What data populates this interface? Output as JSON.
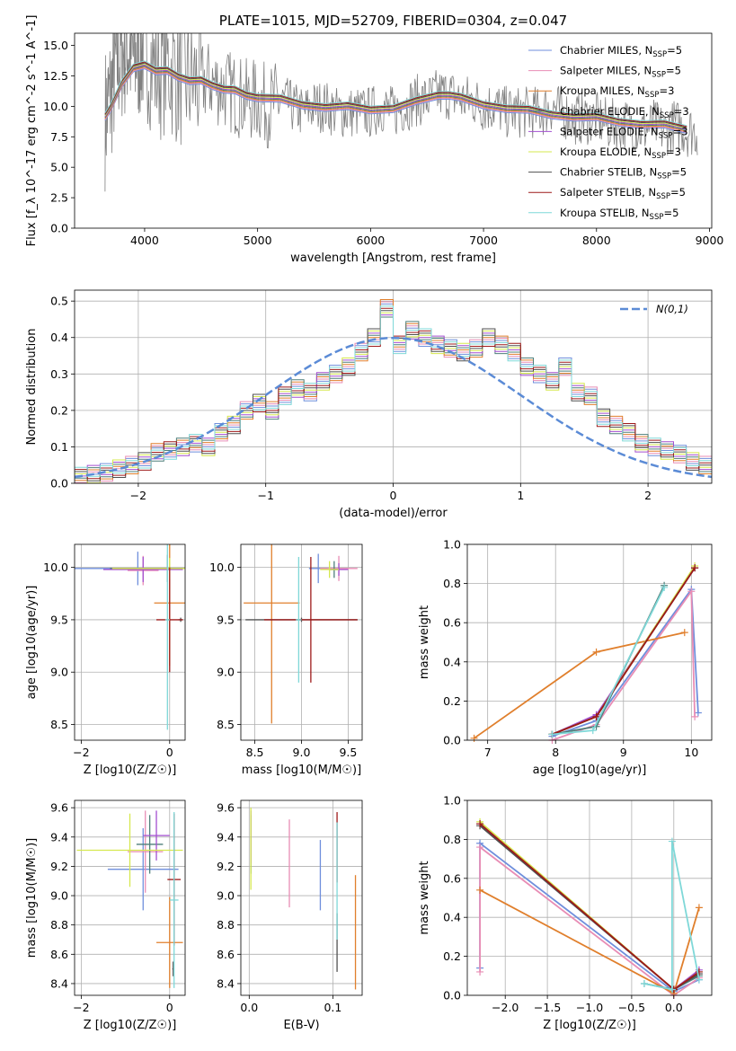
{
  "series_meta": [
    {
      "name": "Chabrier MILES, N_SSP=5",
      "color": "#6f8fdc"
    },
    {
      "name": "Salpeter MILES, N_SSP=5",
      "color": "#e88db5"
    },
    {
      "name": "Kroupa MILES, N_SSP=3",
      "color": "#e07f2c"
    },
    {
      "name": "Chabrier ELODIE, N_SSP=3",
      "color": "#4f7f7a"
    },
    {
      "name": "Salpeter ELODIE, N_SSP=3",
      "color": "#a34fd0"
    },
    {
      "name": "Kroupa ELODIE, N_SSP=3",
      "color": "#d6e84f"
    },
    {
      "name": "Chabrier STELIB, N_SSP=5",
      "color": "#505050"
    },
    {
      "name": "Salpeter STELIB, N_SSP=5",
      "color": "#9e1a1a"
    },
    {
      "name": "Kroupa STELIB, N_SSP=5",
      "color": "#7fd8d8"
    }
  ],
  "chart_data": [
    {
      "panel": "spectrum",
      "type": "line",
      "title": "PLATE=1015, MJD=52709, FIBERID=0304, z=0.047",
      "xlabel": "wavelength [Angstrom, rest frame]",
      "ylabel": "Flux [f_λ 10^-17 erg cm^-2 s^-1 A^-1]",
      "xlim": [
        3380,
        9020
      ],
      "ylim": [
        0,
        16
      ],
      "xticks": [
        "4000",
        "5000",
        "6000",
        "7000",
        "8000",
        "9000"
      ],
      "yticks": [
        "0.0",
        "2.5",
        "5.0",
        "7.5",
        "10.0",
        "12.5",
        "15.0"
      ],
      "legend_position": "upper right",
      "data_color": "#808080",
      "data_x": [
        3650,
        3700,
        3750,
        3800,
        3850,
        3900,
        3950,
        4000,
        4100,
        4200,
        4300,
        4400,
        4500,
        4600,
        4700,
        4800,
        4900,
        5000,
        5100,
        5200,
        5300,
        5400,
        5500,
        5600,
        5700,
        5800,
        5900,
        6000,
        6100,
        6200,
        6300,
        6400,
        6500,
        6600,
        6700,
        6800,
        6900,
        7000,
        7100,
        7200,
        7300,
        7400,
        7500,
        7600,
        7700,
        7800,
        7900,
        8000,
        8100,
        8200,
        8300,
        8400,
        8500,
        8600,
        8700,
        8800,
        8900
      ],
      "data_y": [
        9.0,
        11.0,
        13.5,
        14.5,
        15.0,
        14.0,
        14.5,
        15.0,
        13.0,
        13.5,
        12.5,
        12.0,
        12.0,
        12.0,
        11.5,
        11.0,
        10.5,
        10.5,
        10.0,
        10.5,
        10.0,
        9.5,
        10.0,
        10.0,
        9.5,
        9.5,
        9.5,
        9.5,
        10.0,
        9.5,
        10.0,
        10.5,
        10.5,
        11.0,
        11.0,
        10.5,
        10.5,
        10.0,
        10.0,
        9.5,
        9.5,
        9.5,
        9.5,
        10.0,
        9.5,
        9.0,
        9.0,
        9.0,
        8.5,
        8.5,
        8.5,
        8.0,
        8.5,
        8.0,
        8.5,
        8.0,
        8.0
      ],
      "model_x": [
        3650,
        3700,
        3800,
        3900,
        4000,
        4100,
        4200,
        4300,
        4400,
        4500,
        4600,
        4700,
        4800,
        4900,
        5000,
        5200,
        5400,
        5600,
        5800,
        6000,
        6200,
        6400,
        6600,
        6700,
        6800,
        7000,
        7200,
        7400,
        7600,
        7800,
        8000,
        8200,
        8400,
        8600,
        8800
      ],
      "model_y": [
        9.0,
        10.0,
        12.0,
        13.0,
        13.5,
        13.0,
        12.8,
        12.5,
        12.2,
        12.0,
        11.8,
        11.5,
        11.2,
        11.0,
        10.8,
        10.5,
        10.2,
        10.0,
        9.9,
        9.8,
        9.9,
        10.3,
        11.0,
        11.0,
        10.6,
        10.2,
        9.9,
        9.6,
        9.4,
        9.2,
        9.0,
        8.8,
        8.6,
        8.4,
        8.2
      ]
    },
    {
      "panel": "residuals",
      "type": "histogram",
      "xlabel": "(data-model)/error",
      "ylabel": "Normed distribution",
      "xlim": [
        -2.5,
        2.5
      ],
      "ylim": [
        0,
        0.53
      ],
      "xticks": [
        "−2",
        "−1",
        "0",
        "1",
        "2"
      ],
      "yticks": [
        "0.0",
        "0.1",
        "0.2",
        "0.3",
        "0.4",
        "0.5"
      ],
      "bin_width": 0.1,
      "bin_start": -2.5,
      "values": [
        0.02,
        0.025,
        0.03,
        0.04,
        0.05,
        0.06,
        0.085,
        0.09,
        0.1,
        0.11,
        0.1,
        0.14,
        0.16,
        0.2,
        0.22,
        0.2,
        0.24,
        0.26,
        0.25,
        0.28,
        0.3,
        0.32,
        0.36,
        0.4,
        0.48,
        0.38,
        0.42,
        0.4,
        0.38,
        0.37,
        0.36,
        0.37,
        0.4,
        0.38,
        0.36,
        0.32,
        0.3,
        0.28,
        0.32,
        0.25,
        0.24,
        0.18,
        0.16,
        0.14,
        0.11,
        0.1,
        0.09,
        0.08,
        0.06,
        0.05
      ],
      "gaussian_label": "N(0,1)",
      "gaussian_color": "#5b8bd6"
    },
    {
      "panel": "age_vs_Z",
      "type": "errorbar",
      "xlabel": "Z [log10(Z/Z☉)]",
      "ylabel": "age [log10(age/yr)]",
      "xlim": [
        -2.15,
        0.35
      ],
      "ylim": [
        8.35,
        10.22
      ],
      "xticks": [
        "−2",
        "0"
      ],
      "yticks": [
        "8.5",
        "9.0",
        "9.5",
        "10.0"
      ],
      "points": [
        {
          "x": -0.72,
          "y": 9.99,
          "xe": 1.5,
          "ye": 0.16,
          "s": 0
        },
        {
          "x": -0.6,
          "y": 9.97,
          "xe": 0.35,
          "ye": 0.14,
          "s": 1
        },
        {
          "x": 0.0,
          "y": 9.66,
          "xe": 0.35,
          "ye": 0.6,
          "s": 2
        },
        {
          "x": -0.05,
          "y": 9.99,
          "xe": 1.3,
          "ye": 0.13,
          "s": 3
        },
        {
          "x": -0.6,
          "y": 9.98,
          "xe": 0.9,
          "ye": 0.12,
          "s": 4
        },
        {
          "x": 0.0,
          "y": 9.99,
          "xe": 1.3,
          "ye": 0.1,
          "s": 5
        },
        {
          "x": 0.25,
          "y": 9.5,
          "xe": 0.05,
          "ye": 0.02,
          "s": 6
        },
        {
          "x": 0.0,
          "y": 9.5,
          "xe": 0.3,
          "ye": 0.5,
          "s": 7
        },
        {
          "x": -0.05,
          "y": 9.5,
          "xe": 0.05,
          "ye": 1.05,
          "s": 8
        }
      ]
    },
    {
      "panel": "age_vs_mass",
      "type": "errorbar",
      "xlabel": "mass [log10(M/M☉)]",
      "ylabel": "",
      "xlim": [
        8.35,
        9.65
      ],
      "ylim": [
        8.35,
        10.22
      ],
      "xticks": [
        "8.5",
        "9.0",
        "9.5"
      ],
      "yticks": [
        "8.5",
        "9.0",
        "9.5",
        "10.0"
      ],
      "points": [
        {
          "x": 9.18,
          "y": 9.99,
          "xe": 0.1,
          "ye": 0.14,
          "s": 0
        },
        {
          "x": 9.4,
          "y": 9.99,
          "xe": 0.2,
          "ye": 0.12,
          "s": 1
        },
        {
          "x": 8.68,
          "y": 9.66,
          "xe": 0.3,
          "ye": 1.15,
          "s": 2
        },
        {
          "x": 9.35,
          "y": 9.98,
          "xe": 0.05,
          "ye": 0.08,
          "s": 3
        },
        {
          "x": 9.4,
          "y": 9.98,
          "xe": 0.1,
          "ye": 0.06,
          "s": 4
        },
        {
          "x": 9.3,
          "y": 9.98,
          "xe": 0.1,
          "ye": 0.08,
          "s": 5
        },
        {
          "x": 9.0,
          "y": 9.5,
          "xe": 0.6,
          "ye": 0.02,
          "s": 6
        },
        {
          "x": 9.1,
          "y": 9.5,
          "xe": 0.5,
          "ye": 0.6,
          "s": 7
        },
        {
          "x": 8.97,
          "y": 9.5,
          "xe": 0.03,
          "ye": 0.6,
          "s": 8
        }
      ]
    },
    {
      "panel": "weight_vs_age",
      "type": "line",
      "xlabel": "age [log10(age/yr)]",
      "ylabel": "mass weight",
      "xlim": [
        6.7,
        10.3
      ],
      "ylim": [
        0,
        1.0
      ],
      "xticks": [
        "7",
        "8",
        "9",
        "10"
      ],
      "yticks": [
        "0.0",
        "0.2",
        "0.4",
        "0.6",
        "0.8",
        "1.0"
      ],
      "series": [
        {
          "s": 0,
          "x": [
            7.95,
            8.6,
            10.0,
            10.1
          ],
          "y": [
            0.02,
            0.1,
            0.77,
            0.14
          ]
        },
        {
          "s": 1,
          "x": [
            7.95,
            8.6,
            10.0,
            10.05
          ],
          "y": [
            0.0,
            0.08,
            0.76,
            0.12
          ]
        },
        {
          "s": 2,
          "x": [
            6.8,
            8.6,
            9.9
          ],
          "y": [
            0.01,
            0.45,
            0.55
          ]
        },
        {
          "s": 3,
          "x": [
            7.95,
            8.6,
            9.6
          ],
          "y": [
            0.03,
            0.07,
            0.79
          ]
        },
        {
          "s": 4,
          "x": [
            7.95,
            8.6,
            10.05
          ],
          "y": [
            0.03,
            0.13,
            0.88
          ]
        },
        {
          "s": 5,
          "x": [
            7.95,
            8.6,
            10.05
          ],
          "y": [
            0.03,
            0.12,
            0.89
          ]
        },
        {
          "s": 6,
          "x": [
            7.95,
            8.6,
            10.05
          ],
          "y": [
            0.03,
            0.12,
            0.88
          ]
        },
        {
          "s": 7,
          "x": [
            7.95,
            8.6,
            10.05
          ],
          "y": [
            0.03,
            0.12,
            0.88
          ]
        },
        {
          "s": 8,
          "x": [
            7.95,
            8.55,
            9.6
          ],
          "y": [
            0.03,
            0.05,
            0.78
          ]
        }
      ]
    },
    {
      "panel": "mass_vs_Z",
      "type": "errorbar",
      "xlabel": "Z [log10(Z/Z☉)]",
      "ylabel": "mass [log10(M/M☉)]",
      "xlim": [
        -2.15,
        0.35
      ],
      "ylim": [
        8.32,
        9.65
      ],
      "xticks": [
        "−2",
        "0"
      ],
      "yticks": [
        "8.4",
        "8.6",
        "8.8",
        "9.0",
        "9.2",
        "9.4",
        "9.6"
      ],
      "points": [
        {
          "x": -0.6,
          "y": 9.18,
          "xe": 0.8,
          "ye": 0.28,
          "s": 0
        },
        {
          "x": -0.55,
          "y": 9.3,
          "xe": 0.4,
          "ye": 0.28,
          "s": 1
        },
        {
          "x": 0.0,
          "y": 8.68,
          "xe": 0.3,
          "ye": 0.31,
          "s": 2
        },
        {
          "x": -0.45,
          "y": 9.35,
          "xe": 0.3,
          "ye": 0.2,
          "s": 3
        },
        {
          "x": -0.3,
          "y": 9.41,
          "xe": 0.3,
          "ye": 0.17,
          "s": 4
        },
        {
          "x": -0.9,
          "y": 9.31,
          "xe": 1.2,
          "ye": 0.25,
          "s": 5
        },
        {
          "x": 0.08,
          "y": 8.5,
          "xe": 0.02,
          "ye": 0.05,
          "s": 6
        },
        {
          "x": 0.1,
          "y": 9.11,
          "xe": 0.15,
          "ye": 0.45,
          "s": 7
        },
        {
          "x": 0.1,
          "y": 8.97,
          "xe": 0.1,
          "ye": 0.6,
          "s": 8
        }
      ]
    },
    {
      "panel": "mass_vs_EBV",
      "type": "errorbar",
      "xlabel": "E(B-V)",
      "ylabel": "",
      "xlim": [
        -0.01,
        0.135
      ],
      "ylim": [
        8.32,
        9.65
      ],
      "xticks": [
        "0.0",
        "0.1"
      ],
      "yticks": [
        "8.4",
        "8.6",
        "8.8",
        "9.0",
        "9.2",
        "9.4",
        "9.6"
      ],
      "points": [
        {
          "x": 0.085,
          "y": 9.14,
          "xe": 0,
          "ye": 0.24,
          "s": 0
        },
        {
          "x": 0.048,
          "y": 9.22,
          "xe": 0,
          "ye": 0.3,
          "s": 1
        },
        {
          "x": 0.127,
          "y": 8.75,
          "xe": 0,
          "ye": 0.39,
          "s": 2
        },
        {
          "x": 0.002,
          "y": 9.35,
          "xe": 0,
          "ye": 0.2,
          "s": 3
        },
        {
          "x": 0.002,
          "y": 9.4,
          "xe": 0,
          "ye": 0.18,
          "s": 4
        },
        {
          "x": 0.002,
          "y": 9.32,
          "xe": 0,
          "ye": 0.28,
          "s": 5
        },
        {
          "x": 0.105,
          "y": 8.68,
          "xe": 0,
          "ye": 0.2,
          "s": 6
        },
        {
          "x": 0.105,
          "y": 9.33,
          "xe": 0,
          "ye": 0.24,
          "s": 7
        },
        {
          "x": 0.105,
          "y": 9.1,
          "xe": 0,
          "ye": 0.4,
          "s": 8
        }
      ]
    },
    {
      "panel": "weight_vs_Z",
      "type": "line",
      "xlabel": "Z [log10(Z/Z☉)]",
      "ylabel": "mass weight",
      "xlim": [
        -2.45,
        0.45
      ],
      "ylim": [
        0,
        1.0
      ],
      "xticks": [
        "−2.0",
        "−1.5",
        "−1.0",
        "−0.5",
        "0.0"
      ],
      "yticks": [
        "0.0",
        "0.2",
        "0.4",
        "0.6",
        "0.8",
        "1.0"
      ],
      "series": [
        {
          "s": 0,
          "x": [
            -2.3,
            -2.3,
            0.0,
            0.3
          ],
          "y": [
            0.14,
            0.78,
            0.02,
            0.08
          ]
        },
        {
          "s": 1,
          "x": [
            -2.3,
            -2.3,
            0.0,
            0.3
          ],
          "y": [
            0.12,
            0.76,
            0.0,
            0.09
          ]
        },
        {
          "s": 2,
          "x": [
            -2.3,
            0.0,
            0.3
          ],
          "y": [
            0.54,
            0.01,
            0.45
          ]
        },
        {
          "s": 3,
          "x": [
            -0.35,
            0.0,
            0.3
          ],
          "y": [
            0.06,
            0.03,
            0.1
          ]
        },
        {
          "s": 4,
          "x": [
            -2.3,
            0.0,
            0.3
          ],
          "y": [
            0.88,
            0.03,
            0.13
          ]
        },
        {
          "s": 5,
          "x": [
            -2.3,
            0.0,
            0.3
          ],
          "y": [
            0.89,
            0.03,
            0.12
          ]
        },
        {
          "s": 6,
          "x": [
            -2.3,
            0.0,
            0.3
          ],
          "y": [
            0.87,
            0.03,
            0.11
          ]
        },
        {
          "s": 7,
          "x": [
            -2.3,
            0.0,
            0.3
          ],
          "y": [
            0.88,
            0.03,
            0.12
          ]
        },
        {
          "s": 8,
          "x": [
            -0.35,
            -0.02,
            -0.02,
            0.3
          ],
          "y": [
            0.06,
            0.03,
            0.79,
            0.08
          ]
        }
      ]
    }
  ]
}
